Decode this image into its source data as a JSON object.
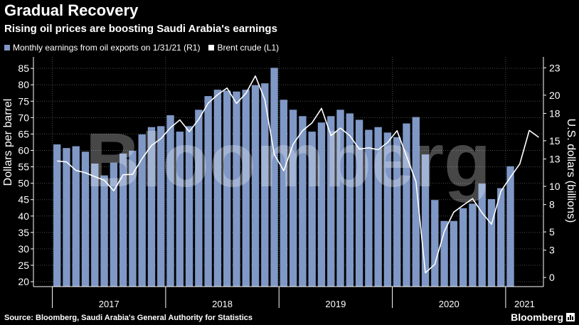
{
  "header": {
    "title": "Gradual Recovery",
    "subtitle": "Rising oil prices are boosting Saudi Arabia's earnings"
  },
  "legend": {
    "bars_label": "Monthly earnings from oil exports on 1/31/21 (R1)",
    "line_label": "Brent crude (L1)"
  },
  "footer": {
    "source": "Source: Bloomberg, Saudi Arabia's General Authority for Statistics",
    "brand": "Bloomberg"
  },
  "watermark": "Bloomberg",
  "colors": {
    "bars": "#7f98c6",
    "line": "#ffffff",
    "background": "#000000",
    "grid": "#4a4a4a",
    "axis": "#ffffff"
  },
  "chart_data": {
    "type": "bar+line",
    "x_axis": {
      "tick_labels": [
        "2017",
        "2018",
        "2019",
        "2020",
        "2021"
      ]
    },
    "left_axis": {
      "label": "Dollars per barrel",
      "range": [
        18.5,
        88.5
      ],
      "ticks": [
        20,
        25,
        30,
        35,
        40,
        45,
        50,
        55,
        60,
        65,
        70,
        75,
        80,
        85
      ]
    },
    "right_axis": {
      "label": "U.S. dollars (billions)",
      "range": [
        -1,
        24.2
      ],
      "ticks": [
        0,
        3,
        5,
        8,
        10,
        13,
        15,
        18,
        20,
        23
      ]
    },
    "grid": true,
    "series": [
      {
        "name": "Monthly earnings from oil exports on 1/31/21 (R1)",
        "axis": "right",
        "kind": "bar",
        "x": [
          "2016-12",
          "2017-01",
          "2017-02",
          "2017-03",
          "2017-04",
          "2017-05",
          "2017-06",
          "2017-07",
          "2017-08",
          "2017-09",
          "2017-10",
          "2017-11",
          "2017-12",
          "2018-01",
          "2018-02",
          "2018-03",
          "2018-04",
          "2018-05",
          "2018-06",
          "2018-07",
          "2018-08",
          "2018-09",
          "2018-10",
          "2018-11",
          "2018-12",
          "2019-01",
          "2019-02",
          "2019-03",
          "2019-04",
          "2019-05",
          "2019-06",
          "2019-07",
          "2019-08",
          "2019-09",
          "2019-10",
          "2019-11",
          "2019-12",
          "2020-01",
          "2020-02",
          "2020-03",
          "2020-04",
          "2020-05",
          "2020-06",
          "2020-07",
          "2020-08",
          "2020-09",
          "2020-10",
          "2020-11",
          "2020-12"
        ],
        "values": [
          14.6,
          14.2,
          14.4,
          13.8,
          12.5,
          11.2,
          12.6,
          13.6,
          13.9,
          15.7,
          16.5,
          16.6,
          17.8,
          16.0,
          16.6,
          18.4,
          19.9,
          20.6,
          20.5,
          20.4,
          20.6,
          21.1,
          21.3,
          23.0,
          19.5,
          18.4,
          17.7,
          16.0,
          17.0,
          17.7,
          18.4,
          18.0,
          17.3,
          16.2,
          16.5,
          15.9,
          15.4,
          16.9,
          17.6,
          13.5,
          8.5,
          6.2,
          6.2,
          7.6,
          8.1,
          10.3,
          8.6,
          9.8,
          12.2
        ]
      },
      {
        "name": "Brent crude (L1)",
        "axis": "left",
        "kind": "line",
        "x": [
          "2016-12",
          "2017-01",
          "2017-02",
          "2017-03",
          "2017-04",
          "2017-05",
          "2017-06",
          "2017-07",
          "2017-08",
          "2017-09",
          "2017-10",
          "2017-11",
          "2017-12",
          "2018-01",
          "2018-02",
          "2018-03",
          "2018-04",
          "2018-05",
          "2018-06",
          "2018-07",
          "2018-08",
          "2018-09",
          "2018-10",
          "2018-11",
          "2018-12",
          "2019-01",
          "2019-02",
          "2019-03",
          "2019-04",
          "2019-05",
          "2019-06",
          "2019-07",
          "2019-08",
          "2019-09",
          "2019-10",
          "2019-11",
          "2019-12",
          "2020-01",
          "2020-02",
          "2020-03",
          "2020-04",
          "2020-05",
          "2020-06",
          "2020-07",
          "2020-08",
          "2020-09",
          "2020-10",
          "2020-11",
          "2020-12",
          "2021-01",
          "2021-02",
          "2021-03"
        ],
        "values": [
          56.8,
          56.5,
          53.9,
          53.2,
          52.0,
          50.9,
          47.7,
          52.6,
          52.7,
          57.5,
          61.5,
          63.6,
          66.9,
          69.3,
          65.7,
          69.5,
          74.4,
          77.0,
          79.0,
          74.3,
          77.4,
          82.7,
          75.5,
          58.8,
          53.8,
          61.9,
          66.0,
          68.4,
          72.8,
          64.5,
          66.8,
          64.5,
          60.4,
          60.8,
          60.2,
          62.4,
          66.0,
          58.2,
          50.5,
          22.7,
          25.3,
          35.3,
          41.2,
          43.3,
          45.3,
          41.0,
          37.5,
          47.6,
          51.8,
          55.9,
          66.1,
          64.0
        ]
      }
    ]
  }
}
